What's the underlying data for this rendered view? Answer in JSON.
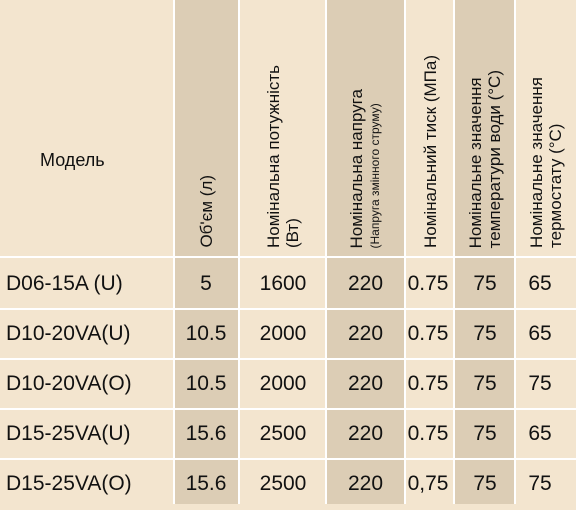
{
  "header": {
    "model": "Модель",
    "volume": "Об'єм (л)",
    "power": [
      "Номінальна потужність",
      "(Вт)"
    ],
    "voltage": "Номінальна напруга",
    "voltage_note": "(Напруга змінного струму)",
    "pressure": "Номінальний тиск (МПа)",
    "water_temp": [
      "Номінальне значення",
      "температури води (°С)"
    ],
    "thermostat": [
      "Номінальне значення",
      "термостату (°С)"
    ]
  },
  "rows": [
    {
      "model": "D06-15A (U)",
      "volume": "5",
      "power": "1600",
      "voltage": "220",
      "pressure": "0.75",
      "water_temp": "75",
      "thermostat": "65"
    },
    {
      "model": "D10-20VA(U)",
      "volume": "10.5",
      "power": "2000",
      "voltage": "220",
      "pressure": "0.75",
      "water_temp": "75",
      "thermostat": "65"
    },
    {
      "model": "D10-20VA(O)",
      "volume": "10.5",
      "power": "2000",
      "voltage": "220",
      "pressure": "0.75",
      "water_temp": "75",
      "thermostat": "75"
    },
    {
      "model": "D15-25VA(U)",
      "volume": "15.6",
      "power": "2500",
      "voltage": "220",
      "pressure": "0.75",
      "water_temp": "75",
      "thermostat": "65"
    },
    {
      "model": "D15-25VA(O)",
      "volume": "15.6",
      "power": "2500",
      "voltage": "220",
      "pressure": "0,75",
      "water_temp": "75",
      "thermostat": "75"
    }
  ],
  "colors": {
    "background": "#f3e5cf",
    "stripe": "#dccdb5",
    "grid": "#ffffff"
  }
}
